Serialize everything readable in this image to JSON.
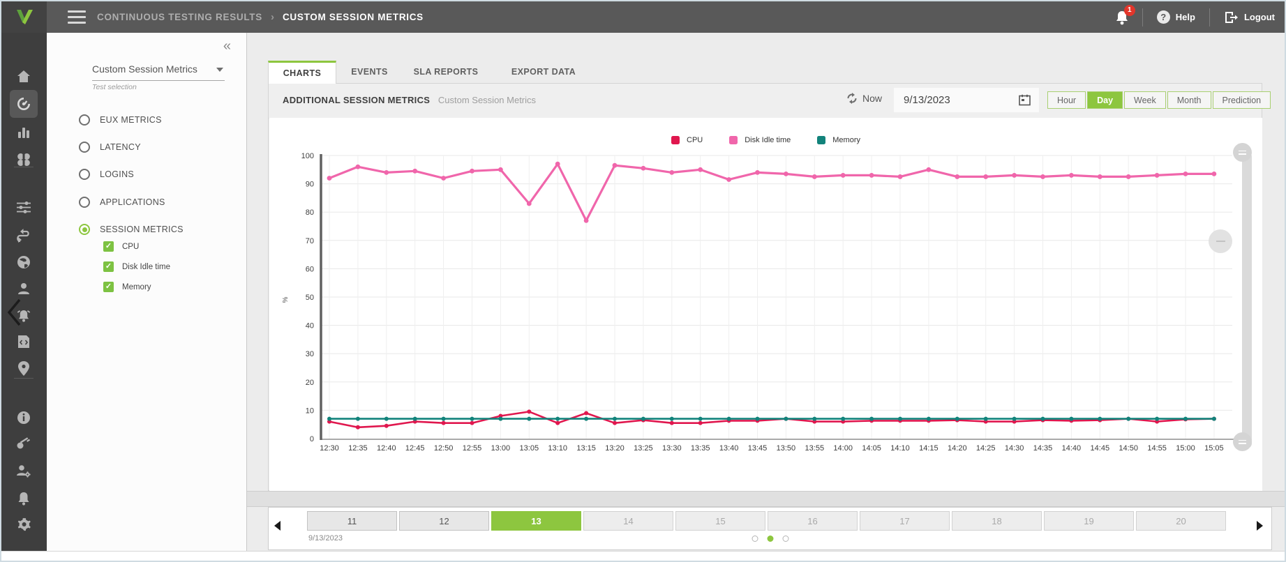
{
  "header": {
    "breadcrumb_section": "CONTINUOUS TESTING RESULTS",
    "breadcrumb_separator": "›",
    "breadcrumb_page": "CUSTOM SESSION METRICS",
    "notification_count": "1",
    "help_label": "Help",
    "logout_label": "Logout"
  },
  "rail": {
    "icons": [
      {
        "name": "home-icon",
        "selected": false
      },
      {
        "name": "dashboard-gauge-icon",
        "selected": true
      },
      {
        "name": "bar-chart-icon",
        "selected": false
      },
      {
        "name": "apps-icon",
        "selected": false
      },
      {
        "name": "divider"
      },
      {
        "name": "sliders-icon",
        "selected": false
      },
      {
        "name": "route-icon",
        "selected": false
      },
      {
        "name": "globe-icon",
        "selected": false
      },
      {
        "name": "user-icon",
        "selected": false
      },
      {
        "name": "alarm-icon",
        "selected": false
      },
      {
        "name": "script-icon",
        "selected": false
      },
      {
        "name": "location-pin-icon",
        "selected": false
      },
      {
        "name": "divider"
      },
      {
        "name": "info-icon",
        "selected": false
      },
      {
        "name": "key-icon",
        "selected": false
      },
      {
        "name": "user-settings-icon",
        "selected": false
      },
      {
        "name": "bell-icon",
        "selected": false
      },
      {
        "name": "gear-icon",
        "selected": false
      }
    ]
  },
  "test_panel": {
    "collapse_glyph": "«",
    "selector_value": "Custom Session Metrics",
    "selector_caption": "Test selection",
    "options": [
      {
        "label": "EUX METRICS",
        "selected": false
      },
      {
        "label": "LATENCY",
        "selected": false
      },
      {
        "label": "LOGINS",
        "selected": false
      },
      {
        "label": "APPLICATIONS",
        "selected": false
      },
      {
        "label": "SESSION METRICS",
        "selected": true
      }
    ],
    "metrics": [
      {
        "label": "CPU",
        "checked": true
      },
      {
        "label": "Disk Idle time",
        "checked": true
      },
      {
        "label": "Memory",
        "checked": true
      }
    ]
  },
  "tabs": {
    "items": [
      {
        "label": "CHARTS",
        "active": true
      },
      {
        "label": "EVENTS",
        "active": false
      },
      {
        "label": "SLA REPORTS",
        "active": false
      },
      {
        "label": "EXPORT DATA",
        "active": false
      }
    ]
  },
  "toolbar": {
    "title": "ADDITIONAL SESSION METRICS",
    "subtitle": "Custom Session Metrics",
    "now_label": "Now",
    "date_value": "9/13/2023",
    "range_buttons": [
      {
        "label": "Hour",
        "active": false
      },
      {
        "label": "Day",
        "active": true
      },
      {
        "label": "Week",
        "active": false
      },
      {
        "label": "Month",
        "active": false
      },
      {
        "label": "Prediction",
        "active": false
      }
    ]
  },
  "chart_data": {
    "type": "line",
    "title": "",
    "xlabel": "",
    "ylabel": "%",
    "ylim": [
      0,
      100
    ],
    "y_ticks": [
      0,
      10,
      20,
      30,
      40,
      50,
      60,
      70,
      80,
      90,
      100
    ],
    "grid": true,
    "legend_position": "top",
    "x": [
      "12:30",
      "12:35",
      "12:40",
      "12:45",
      "12:50",
      "12:55",
      "13:00",
      "13:05",
      "13:10",
      "13:15",
      "13:20",
      "13:25",
      "13:30",
      "13:35",
      "13:40",
      "13:45",
      "13:50",
      "13:55",
      "14:00",
      "14:05",
      "14:10",
      "14:15",
      "14:20",
      "14:25",
      "14:30",
      "14:35",
      "14:40",
      "14:45",
      "14:50",
      "14:55",
      "15:00",
      "15:05"
    ],
    "series": [
      {
        "name": "CPU",
        "color": "#e0174e",
        "values": [
          6,
          4,
          4.5,
          6,
          5.5,
          5.5,
          8,
          9.5,
          5.5,
          9,
          5.5,
          6.5,
          5.5,
          5.5,
          6.3,
          6.3,
          7,
          6,
          6,
          6.3,
          6.3,
          6.3,
          6.5,
          6,
          6,
          6.5,
          6.3,
          6.5,
          7,
          6,
          6.8,
          7
        ]
      },
      {
        "name": "Disk Idle time",
        "color": "#f066ab",
        "values": [
          92,
          96,
          94,
          94.5,
          92,
          94.5,
          95,
          83,
          97,
          77,
          96.5,
          95.5,
          94,
          95,
          91.5,
          94,
          93.5,
          92.5,
          93,
          93,
          92.5,
          95,
          92.5,
          92.5,
          93,
          92.5,
          93,
          92.5,
          92.5,
          93,
          93.5,
          93.5
        ]
      },
      {
        "name": "Memory",
        "color": "#12837b",
        "values": [
          7,
          7,
          7,
          7,
          7,
          7,
          7,
          7,
          7,
          7,
          7,
          7,
          7,
          7,
          7,
          7,
          7,
          7,
          7,
          7,
          7,
          7,
          7,
          7,
          7,
          7,
          7,
          7,
          7,
          7,
          7,
          7
        ]
      }
    ]
  },
  "pagination": {
    "prev_glyph": "◀",
    "next_glyph": "▶",
    "days": [
      {
        "label": "11",
        "state": "past"
      },
      {
        "label": "12",
        "state": "past"
      },
      {
        "label": "13",
        "state": "active"
      },
      {
        "label": "14",
        "state": "future"
      },
      {
        "label": "15",
        "state": "future"
      },
      {
        "label": "16",
        "state": "future"
      },
      {
        "label": "17",
        "state": "future"
      },
      {
        "label": "18",
        "state": "future"
      },
      {
        "label": "19",
        "state": "future"
      },
      {
        "label": "20",
        "state": "future"
      }
    ],
    "date_label": "9/13/2023",
    "dots": [
      {
        "active": false
      },
      {
        "active": true
      },
      {
        "active": false
      }
    ]
  },
  "colors": {
    "accent_green": "#8dc63f",
    "cpu": "#e0174e",
    "disk_idle": "#f066ab",
    "memory": "#12837b",
    "topbar": "#595959",
    "rail": "#3e3e3e"
  }
}
